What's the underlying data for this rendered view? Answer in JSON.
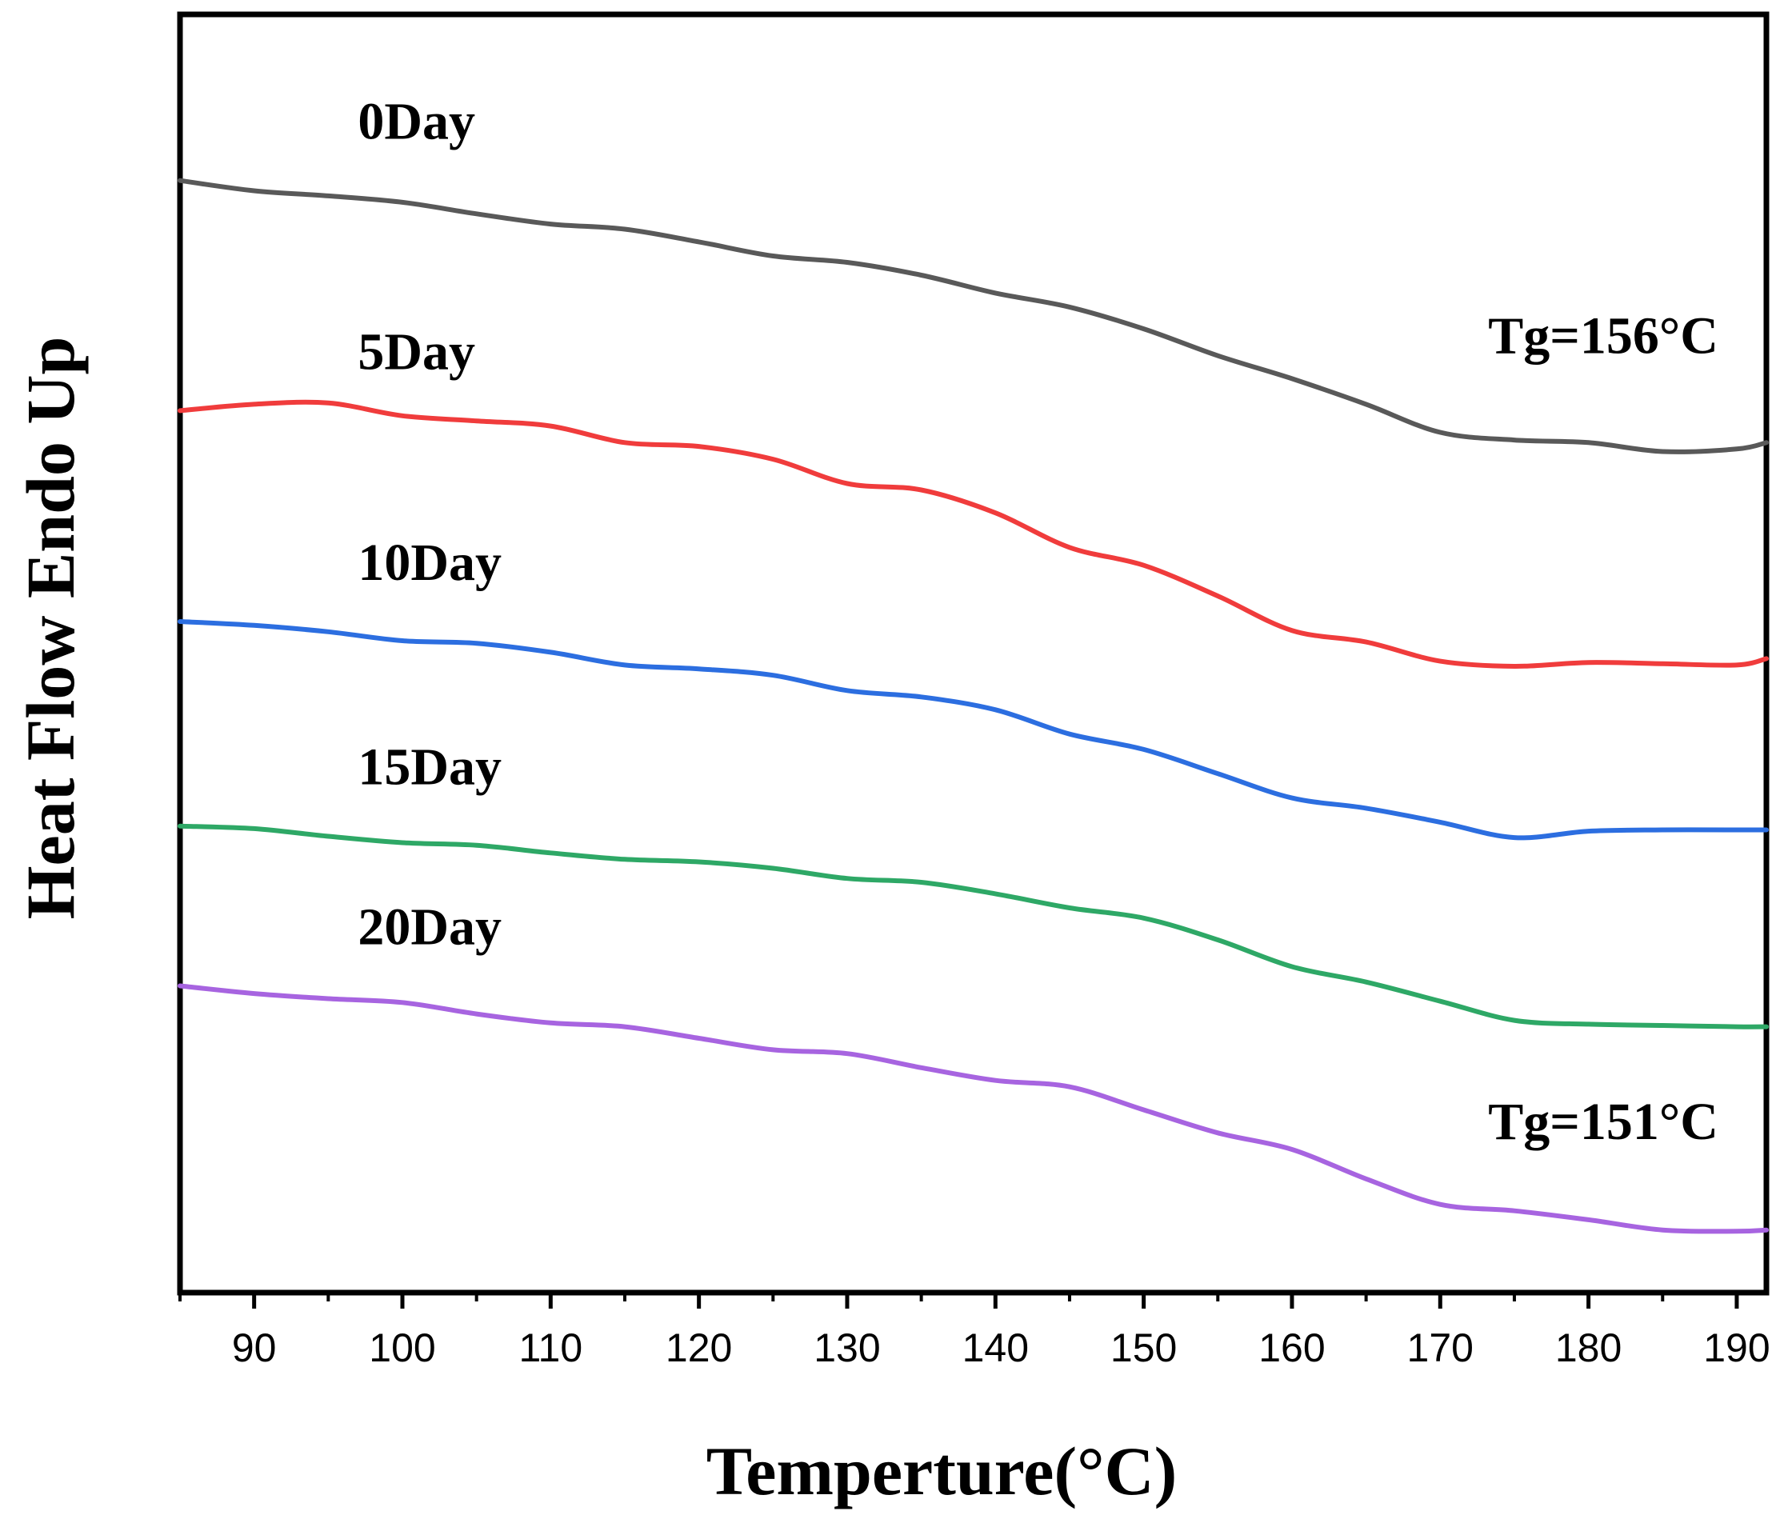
{
  "chart_data": {
    "type": "line",
    "title": "",
    "xlabel": "Temperture(°C)",
    "ylabel": "Heat Flow Endo Up",
    "xlim": [
      85,
      192
    ],
    "ylim": [
      0,
      100
    ],
    "xticks": [
      90,
      100,
      110,
      120,
      130,
      140,
      150,
      160,
      170,
      180,
      190
    ],
    "yticks_visible": false,
    "grid": false,
    "series": [
      {
        "name": "0Day",
        "color": "#595959",
        "x": [
          85,
          90,
          95,
          100,
          105,
          110,
          115,
          120,
          125,
          130,
          135,
          140,
          145,
          150,
          155,
          160,
          165,
          170,
          175,
          180,
          185,
          190,
          192
        ],
        "y": [
          87.0,
          86.2,
          85.8,
          85.3,
          84.4,
          83.6,
          83.2,
          82.2,
          81.1,
          80.6,
          79.6,
          78.2,
          77.1,
          75.4,
          73.3,
          71.5,
          69.5,
          67.3,
          66.7,
          66.5,
          65.8,
          66.0,
          66.5
        ]
      },
      {
        "name": "5Day",
        "color": "#f03c3c",
        "x": [
          85,
          90,
          95,
          100,
          105,
          110,
          115,
          120,
          125,
          130,
          135,
          140,
          145,
          150,
          155,
          160,
          165,
          170,
          175,
          180,
          185,
          190,
          192
        ],
        "y": [
          69.0,
          69.5,
          69.6,
          68.6,
          68.2,
          67.8,
          66.5,
          66.2,
          65.2,
          63.3,
          62.8,
          61.0,
          58.3,
          56.9,
          54.5,
          51.8,
          50.9,
          49.4,
          49.0,
          49.3,
          49.2,
          49.1,
          49.6
        ]
      },
      {
        "name": "10Day",
        "color": "#2c6ee0",
        "x": [
          85,
          90,
          95,
          100,
          105,
          110,
          115,
          120,
          125,
          130,
          135,
          140,
          145,
          150,
          155,
          160,
          165,
          170,
          175,
          180,
          185,
          190,
          192
        ],
        "y": [
          52.5,
          52.2,
          51.7,
          51.0,
          50.8,
          50.1,
          49.1,
          48.8,
          48.3,
          47.1,
          46.6,
          45.6,
          43.7,
          42.5,
          40.6,
          38.7,
          37.9,
          36.8,
          35.6,
          36.1,
          36.2,
          36.2,
          36.2
        ]
      },
      {
        "name": "15Day",
        "color": "#2ea866",
        "x": [
          85,
          90,
          95,
          100,
          105,
          110,
          115,
          120,
          125,
          130,
          135,
          140,
          145,
          150,
          155,
          160,
          165,
          170,
          175,
          180,
          185,
          190,
          192
        ],
        "y": [
          36.5,
          36.3,
          35.7,
          35.2,
          35.0,
          34.4,
          33.9,
          33.7,
          33.2,
          32.4,
          32.1,
          31.2,
          30.1,
          29.3,
          27.6,
          25.5,
          24.3,
          22.8,
          21.3,
          21.0,
          20.9,
          20.8,
          20.8
        ]
      },
      {
        "name": "20Day",
        "color": "#a764e0",
        "x": [
          85,
          90,
          95,
          100,
          105,
          110,
          115,
          120,
          125,
          130,
          135,
          140,
          145,
          150,
          155,
          160,
          165,
          170,
          175,
          180,
          185,
          190,
          192
        ],
        "y": [
          24.0,
          23.4,
          23.0,
          22.7,
          21.8,
          21.1,
          20.8,
          19.9,
          19.0,
          18.7,
          17.6,
          16.6,
          16.1,
          14.3,
          12.5,
          11.2,
          8.9,
          6.9,
          6.4,
          5.7,
          4.9,
          4.8,
          4.9
        ]
      }
    ],
    "annotations": [
      {
        "text": "Tg=156°C",
        "x": 181,
        "y": 73.5
      },
      {
        "text": "Tg=151°C",
        "x": 181,
        "y": 12.0
      }
    ],
    "legend": "inline labels above each curve"
  }
}
